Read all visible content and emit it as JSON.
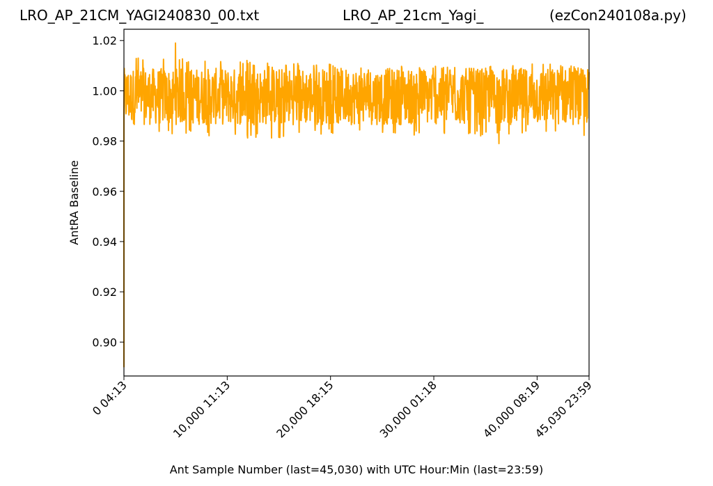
{
  "header": {
    "left": "LRO_AP_21CM_YAGI240830_00.txt",
    "middle": "LRO_AP_21cm_Yagi_",
    "right": "(ezCon240108a.py)"
  },
  "chart_data": {
    "type": "line",
    "title": "",
    "xlabel": "Ant Sample Number (last=45,030) with UTC Hour:Min (last=23:59)",
    "ylabel": "AntRA Baseline",
    "xlim": [
      0,
      45030
    ],
    "ylim": [
      0.8865,
      1.0245
    ],
    "grid": false,
    "series_color": "#ffa500",
    "x_ticks": [
      {
        "value": 0,
        "label": "0  04:13"
      },
      {
        "value": 10000,
        "label": "10,000  11:13"
      },
      {
        "value": 20000,
        "label": "20,000  18:15"
      },
      {
        "value": 30000,
        "label": "30,000  01:18"
      },
      {
        "value": 40000,
        "label": "40,000  08:19"
      },
      {
        "value": 45030,
        "label": "45,030  23:59"
      }
    ],
    "y_ticks": [
      {
        "value": 0.9,
        "label": "0.90"
      },
      {
        "value": 0.92,
        "label": "0.92"
      },
      {
        "value": 0.94,
        "label": "0.94"
      },
      {
        "value": 0.96,
        "label": "0.96"
      },
      {
        "value": 0.98,
        "label": "0.98"
      },
      {
        "value": 1.0,
        "label": "1.00"
      },
      {
        "value": 1.02,
        "label": "1.02"
      }
    ],
    "series": [
      {
        "mean": 0.9975,
        "band_upper": 1.009,
        "band_lower": 0.9865,
        "max": 1.019,
        "max_at": 4980,
        "min": 0.979,
        "min_at": 36300,
        "start_dip": 0.89,
        "envelope_x": [
          0,
          5000,
          10000,
          15000,
          20000,
          25000,
          30000,
          35000,
          40000,
          45030
        ],
        "envelope_upper": [
          1.012,
          1.011,
          1.011,
          1.009,
          1.009,
          1.008,
          1.008,
          1.008,
          1.009,
          1.008
        ],
        "envelope_lower": [
          0.984,
          0.985,
          0.983,
          0.983,
          0.985,
          0.985,
          0.984,
          0.984,
          0.985,
          0.983
        ]
      }
    ]
  }
}
